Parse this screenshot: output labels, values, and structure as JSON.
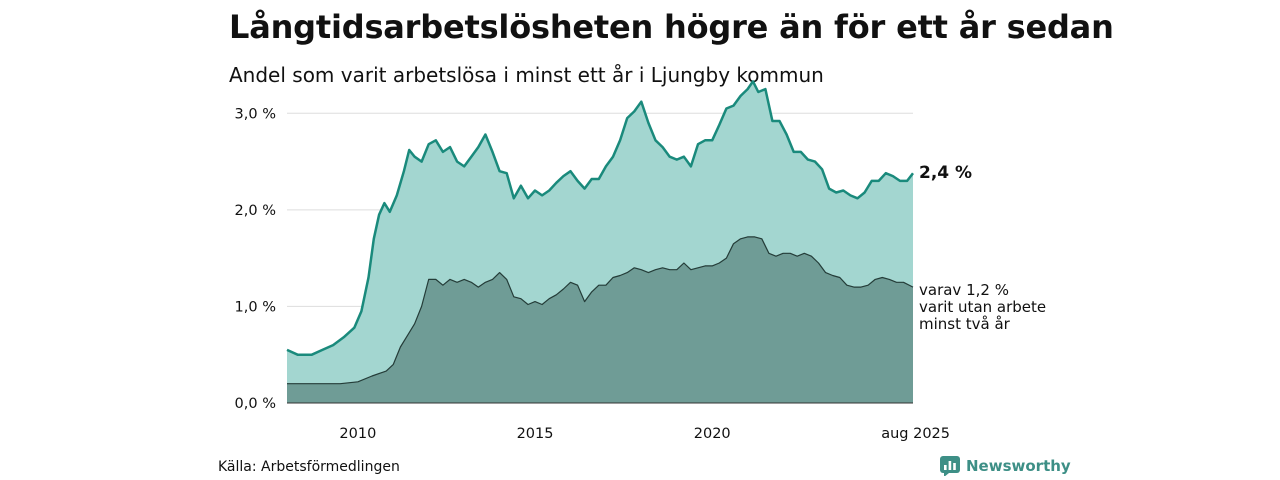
{
  "title": "Långtidsarbetslösheten högre än för ett år sedan",
  "subtitle": "Andel som varit arbetslösa i minst ett år i Ljungby kommun",
  "source": "Källa: Arbetsförmedlingen",
  "brand": {
    "name": "Newsworthy",
    "icon": "bar-chart-logo-icon"
  },
  "colors": {
    "total_fill": "#a3d6d0",
    "total_line": "#1a8a7c",
    "sub_fill": "#6f9c96",
    "sub_line": "#243c38",
    "grid": "#dddddd"
  },
  "chart_data": {
    "type": "area",
    "x_unit": "year",
    "xlim": [
      2008.0,
      2025.6667
    ],
    "ylim": [
      0,
      3.5
    ],
    "y_ticks": [
      {
        "value": 0,
        "label": "0,0 %"
      },
      {
        "value": 1,
        "label": "1,0 %"
      },
      {
        "value": 2,
        "label": "2,0 %"
      },
      {
        "value": 3,
        "label": "3,0 %"
      }
    ],
    "x_ticks": [
      {
        "value": 2010,
        "label": "2010"
      },
      {
        "value": 2015,
        "label": "2015"
      },
      {
        "value": 2020,
        "label": "2020"
      },
      {
        "value": 2025.6667,
        "label": "aug 2025"
      }
    ],
    "grid": true,
    "series": [
      {
        "key": "total",
        "end_label": "2,4 %",
        "points": [
          [
            2008.0,
            0.55
          ],
          [
            2008.3,
            0.5
          ],
          [
            2008.7,
            0.5
          ],
          [
            2009.0,
            0.55
          ],
          [
            2009.3,
            0.6
          ],
          [
            2009.6,
            0.68
          ],
          [
            2009.9,
            0.78
          ],
          [
            2010.1,
            0.95
          ],
          [
            2010.3,
            1.3
          ],
          [
            2010.45,
            1.7
          ],
          [
            2010.6,
            1.95
          ],
          [
            2010.75,
            2.07
          ],
          [
            2010.9,
            1.98
          ],
          [
            2011.1,
            2.15
          ],
          [
            2011.3,
            2.4
          ],
          [
            2011.45,
            2.62
          ],
          [
            2011.6,
            2.55
          ],
          [
            2011.8,
            2.5
          ],
          [
            2012.0,
            2.68
          ],
          [
            2012.2,
            2.72
          ],
          [
            2012.4,
            2.6
          ],
          [
            2012.6,
            2.65
          ],
          [
            2012.8,
            2.5
          ],
          [
            2013.0,
            2.45
          ],
          [
            2013.2,
            2.55
          ],
          [
            2013.4,
            2.65
          ],
          [
            2013.6,
            2.78
          ],
          [
            2013.8,
            2.6
          ],
          [
            2014.0,
            2.4
          ],
          [
            2014.2,
            2.38
          ],
          [
            2014.4,
            2.12
          ],
          [
            2014.6,
            2.25
          ],
          [
            2014.8,
            2.12
          ],
          [
            2015.0,
            2.2
          ],
          [
            2015.2,
            2.15
          ],
          [
            2015.4,
            2.2
          ],
          [
            2015.6,
            2.28
          ],
          [
            2015.8,
            2.35
          ],
          [
            2016.0,
            2.4
          ],
          [
            2016.2,
            2.3
          ],
          [
            2016.4,
            2.22
          ],
          [
            2016.6,
            2.32
          ],
          [
            2016.8,
            2.32
          ],
          [
            2017.0,
            2.45
          ],
          [
            2017.2,
            2.55
          ],
          [
            2017.4,
            2.72
          ],
          [
            2017.6,
            2.95
          ],
          [
            2017.8,
            3.02
          ],
          [
            2018.0,
            3.12
          ],
          [
            2018.2,
            2.9
          ],
          [
            2018.4,
            2.72
          ],
          [
            2018.6,
            2.65
          ],
          [
            2018.8,
            2.55
          ],
          [
            2019.0,
            2.52
          ],
          [
            2019.2,
            2.55
          ],
          [
            2019.4,
            2.45
          ],
          [
            2019.6,
            2.68
          ],
          [
            2019.8,
            2.72
          ],
          [
            2020.0,
            2.72
          ],
          [
            2020.2,
            2.88
          ],
          [
            2020.4,
            3.05
          ],
          [
            2020.6,
            3.08
          ],
          [
            2020.8,
            3.18
          ],
          [
            2021.0,
            3.25
          ],
          [
            2021.15,
            3.33
          ],
          [
            2021.3,
            3.22
          ],
          [
            2021.5,
            3.25
          ],
          [
            2021.7,
            2.92
          ],
          [
            2021.9,
            2.92
          ],
          [
            2022.1,
            2.78
          ],
          [
            2022.3,
            2.6
          ],
          [
            2022.5,
            2.6
          ],
          [
            2022.7,
            2.52
          ],
          [
            2022.9,
            2.5
          ],
          [
            2023.1,
            2.42
          ],
          [
            2023.3,
            2.22
          ],
          [
            2023.5,
            2.18
          ],
          [
            2023.7,
            2.2
          ],
          [
            2023.9,
            2.15
          ],
          [
            2024.1,
            2.12
          ],
          [
            2024.3,
            2.18
          ],
          [
            2024.5,
            2.3
          ],
          [
            2024.7,
            2.3
          ],
          [
            2024.9,
            2.38
          ],
          [
            2025.1,
            2.35
          ],
          [
            2025.3,
            2.3
          ],
          [
            2025.5,
            2.3
          ],
          [
            2025.6667,
            2.38
          ]
        ]
      },
      {
        "key": "two_years",
        "end_label_lines": [
          "varav 1,2 %",
          "varit utan arbete",
          "minst två år"
        ],
        "points": [
          [
            2008.0,
            0.2
          ],
          [
            2008.5,
            0.2
          ],
          [
            2009.0,
            0.2
          ],
          [
            2009.5,
            0.2
          ],
          [
            2010.0,
            0.22
          ],
          [
            2010.4,
            0.28
          ],
          [
            2010.8,
            0.33
          ],
          [
            2011.0,
            0.4
          ],
          [
            2011.2,
            0.58
          ],
          [
            2011.4,
            0.7
          ],
          [
            2011.6,
            0.82
          ],
          [
            2011.8,
            1.0
          ],
          [
            2012.0,
            1.28
          ],
          [
            2012.2,
            1.28
          ],
          [
            2012.4,
            1.22
          ],
          [
            2012.6,
            1.28
          ],
          [
            2012.8,
            1.25
          ],
          [
            2013.0,
            1.28
          ],
          [
            2013.2,
            1.25
          ],
          [
            2013.4,
            1.2
          ],
          [
            2013.6,
            1.25
          ],
          [
            2013.8,
            1.28
          ],
          [
            2014.0,
            1.35
          ],
          [
            2014.2,
            1.28
          ],
          [
            2014.4,
            1.1
          ],
          [
            2014.6,
            1.08
          ],
          [
            2014.8,
            1.02
          ],
          [
            2015.0,
            1.05
          ],
          [
            2015.2,
            1.02
          ],
          [
            2015.4,
            1.08
          ],
          [
            2015.6,
            1.12
          ],
          [
            2015.8,
            1.18
          ],
          [
            2016.0,
            1.25
          ],
          [
            2016.2,
            1.22
          ],
          [
            2016.4,
            1.05
          ],
          [
            2016.6,
            1.15
          ],
          [
            2016.8,
            1.22
          ],
          [
            2017.0,
            1.22
          ],
          [
            2017.2,
            1.3
          ],
          [
            2017.4,
            1.32
          ],
          [
            2017.6,
            1.35
          ],
          [
            2017.8,
            1.4
          ],
          [
            2018.0,
            1.38
          ],
          [
            2018.2,
            1.35
          ],
          [
            2018.4,
            1.38
          ],
          [
            2018.6,
            1.4
          ],
          [
            2018.8,
            1.38
          ],
          [
            2019.0,
            1.38
          ],
          [
            2019.2,
            1.45
          ],
          [
            2019.4,
            1.38
          ],
          [
            2019.6,
            1.4
          ],
          [
            2019.8,
            1.42
          ],
          [
            2020.0,
            1.42
          ],
          [
            2020.2,
            1.45
          ],
          [
            2020.4,
            1.5
          ],
          [
            2020.6,
            1.65
          ],
          [
            2020.8,
            1.7
          ],
          [
            2021.0,
            1.72
          ],
          [
            2021.2,
            1.72
          ],
          [
            2021.4,
            1.7
          ],
          [
            2021.6,
            1.55
          ],
          [
            2021.8,
            1.52
          ],
          [
            2022.0,
            1.55
          ],
          [
            2022.2,
            1.55
          ],
          [
            2022.4,
            1.52
          ],
          [
            2022.6,
            1.55
          ],
          [
            2022.8,
            1.52
          ],
          [
            2023.0,
            1.45
          ],
          [
            2023.2,
            1.35
          ],
          [
            2023.4,
            1.32
          ],
          [
            2023.6,
            1.3
          ],
          [
            2023.8,
            1.22
          ],
          [
            2024.0,
            1.2
          ],
          [
            2024.2,
            1.2
          ],
          [
            2024.4,
            1.22
          ],
          [
            2024.6,
            1.28
          ],
          [
            2024.8,
            1.3
          ],
          [
            2025.0,
            1.28
          ],
          [
            2025.2,
            1.25
          ],
          [
            2025.4,
            1.25
          ],
          [
            2025.6667,
            1.2
          ]
        ]
      }
    ]
  }
}
